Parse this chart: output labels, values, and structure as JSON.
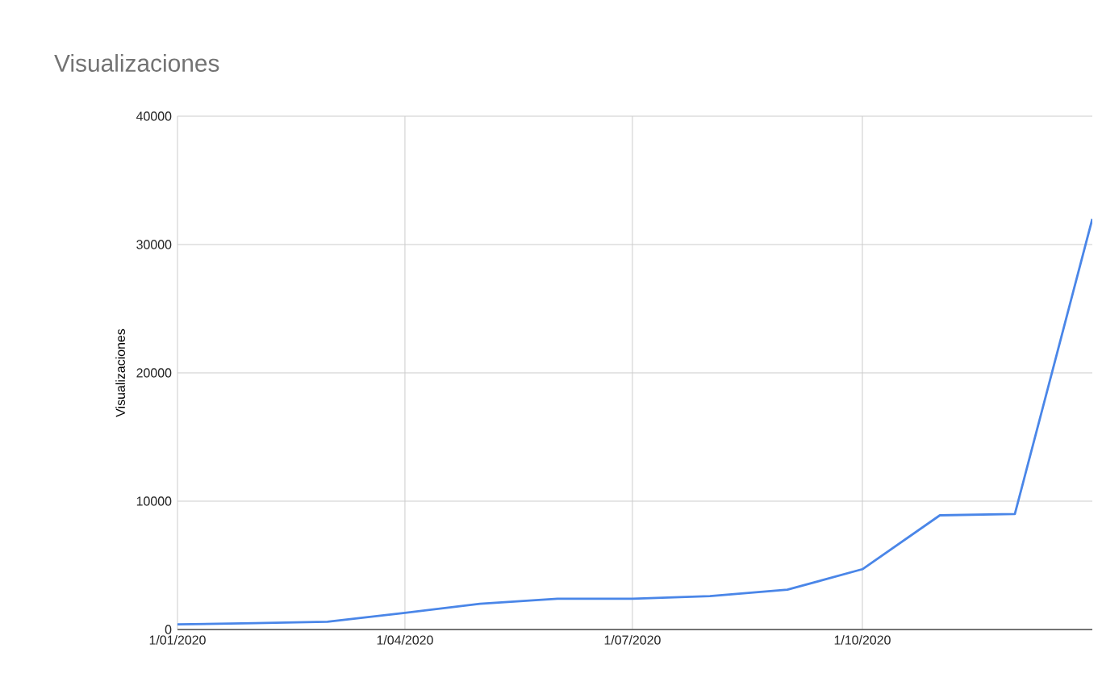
{
  "chart_data": {
    "type": "line",
    "title": "Visualizaciones",
    "ylabel": "Visualizaciones",
    "x": [
      "2020-01-01",
      "2020-02-01",
      "2020-03-01",
      "2020-04-01",
      "2020-05-01",
      "2020-06-01",
      "2020-07-01",
      "2020-08-01",
      "2020-09-01",
      "2020-10-01",
      "2020-11-01",
      "2020-12-01",
      "2021-01-01"
    ],
    "series": [
      {
        "color": "#4a86e8",
        "values": [
          400,
          500,
          600,
          1300,
          2000,
          2400,
          2400,
          2600,
          3100,
          4700,
          8900,
          9000,
          32000
        ]
      }
    ],
    "xlim": [
      "2020-01-01",
      "2021-01-01"
    ],
    "xticks": [
      {
        "value": "2020-01-01",
        "label": "1/01/2020"
      },
      {
        "value": "2020-04-01",
        "label": "1/04/2020"
      },
      {
        "value": "2020-07-01",
        "label": "1/07/2020"
      },
      {
        "value": "2020-10-01",
        "label": "1/10/2020"
      }
    ],
    "ylim": [
      0,
      40000
    ],
    "yticks": [
      0,
      10000,
      20000,
      30000,
      40000
    ],
    "grid": true,
    "marker": "none",
    "line_style": "solid"
  }
}
